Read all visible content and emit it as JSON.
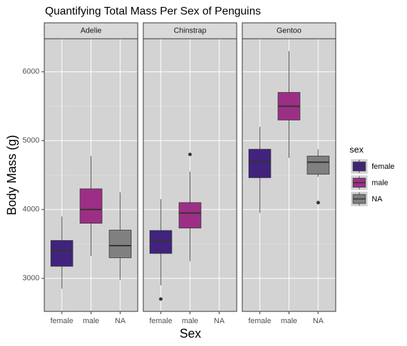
{
  "chart_data": {
    "type": "box",
    "title": "Quantifying Total Mass Per Sex of Penguins",
    "x_label": "Sex",
    "y_label": "Body Mass (g)",
    "legend_title": "sex",
    "categories": [
      "female",
      "male",
      "NA"
    ],
    "colors": [
      "#41237e",
      "#9c2f85",
      "#808080"
    ],
    "ylim": [
      2520,
      6480
    ],
    "yticks": [
      3000,
      4000,
      5000,
      6000
    ],
    "grid": true,
    "facets": [
      {
        "name": "Adelie",
        "boxes": [
          {
            "min": 2850,
            "q1": 3175,
            "median": 3400,
            "q3": 3550,
            "max": 3900,
            "outliers": []
          },
          {
            "min": 3325,
            "q1": 3800,
            "median": 4000,
            "q3": 4300,
            "max": 4775,
            "outliers": []
          },
          {
            "min": 2975,
            "q1": 3300,
            "median": 3475,
            "q3": 3700,
            "max": 4250,
            "outliers": []
          }
        ]
      },
      {
        "name": "Chinstrap",
        "boxes": [
          {
            "min": 2900,
            "q1": 3362,
            "median": 3550,
            "q3": 3695,
            "max": 4150,
            "outliers": [
              2700
            ]
          },
          {
            "min": 3250,
            "q1": 3731,
            "median": 3950,
            "q3": 4100,
            "max": 4550,
            "outliers": [
              4800
            ]
          },
          null
        ]
      },
      {
        "name": "Gentoo",
        "boxes": [
          {
            "min": 3950,
            "q1": 4462,
            "median": 4700,
            "q3": 4875,
            "max": 5200,
            "outliers": []
          },
          {
            "min": 4750,
            "q1": 5300,
            "median": 5500,
            "q3": 5700,
            "max": 6300,
            "outliers": []
          },
          {
            "min": 4475,
            "q1": 4512,
            "median": 4687,
            "q3": 4775,
            "max": 4875,
            "outliers": [
              4100
            ]
          }
        ]
      }
    ]
  }
}
